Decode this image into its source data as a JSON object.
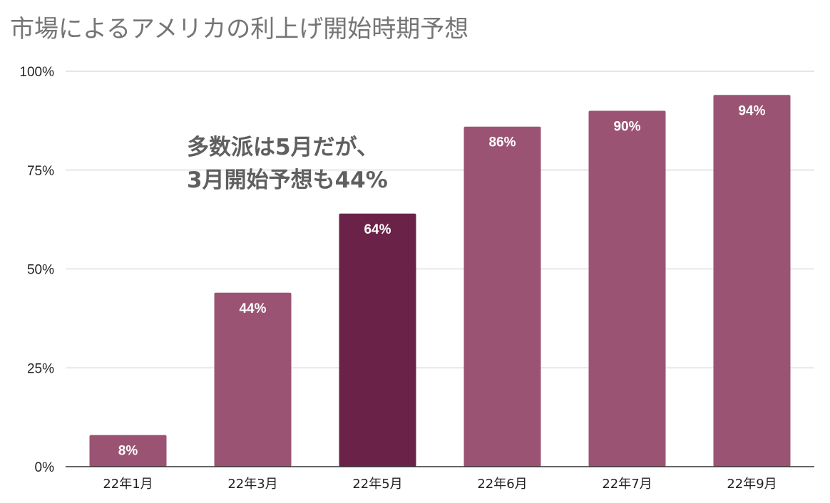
{
  "chart_data": {
    "type": "bar",
    "title": "市場によるアメリカの利上げ開始時期予想",
    "xlabel": "",
    "ylabel": "",
    "categories": [
      "22年1月",
      "22年3月",
      "22年5月",
      "22年6月",
      "22年7月",
      "22年9月"
    ],
    "values": [
      8,
      44,
      64,
      86,
      90,
      94
    ],
    "data_labels": [
      "8%",
      "44%",
      "64%",
      "86%",
      "90%",
      "94%"
    ],
    "ylim": [
      0,
      100
    ],
    "yticks": [
      0,
      25,
      50,
      75,
      100
    ],
    "ytick_labels": [
      "0%",
      "25%",
      "50%",
      "75%",
      "100%"
    ],
    "highlight_index": 2,
    "colors": {
      "bar": "#9b5373",
      "highlight": "#6b2248",
      "grid": "#cccccc",
      "axis": "#333333"
    },
    "grid": true,
    "legend": "none",
    "annotation": {
      "lines": [
        "多数派は5月だが、",
        "3月開始予想も44%"
      ]
    }
  }
}
